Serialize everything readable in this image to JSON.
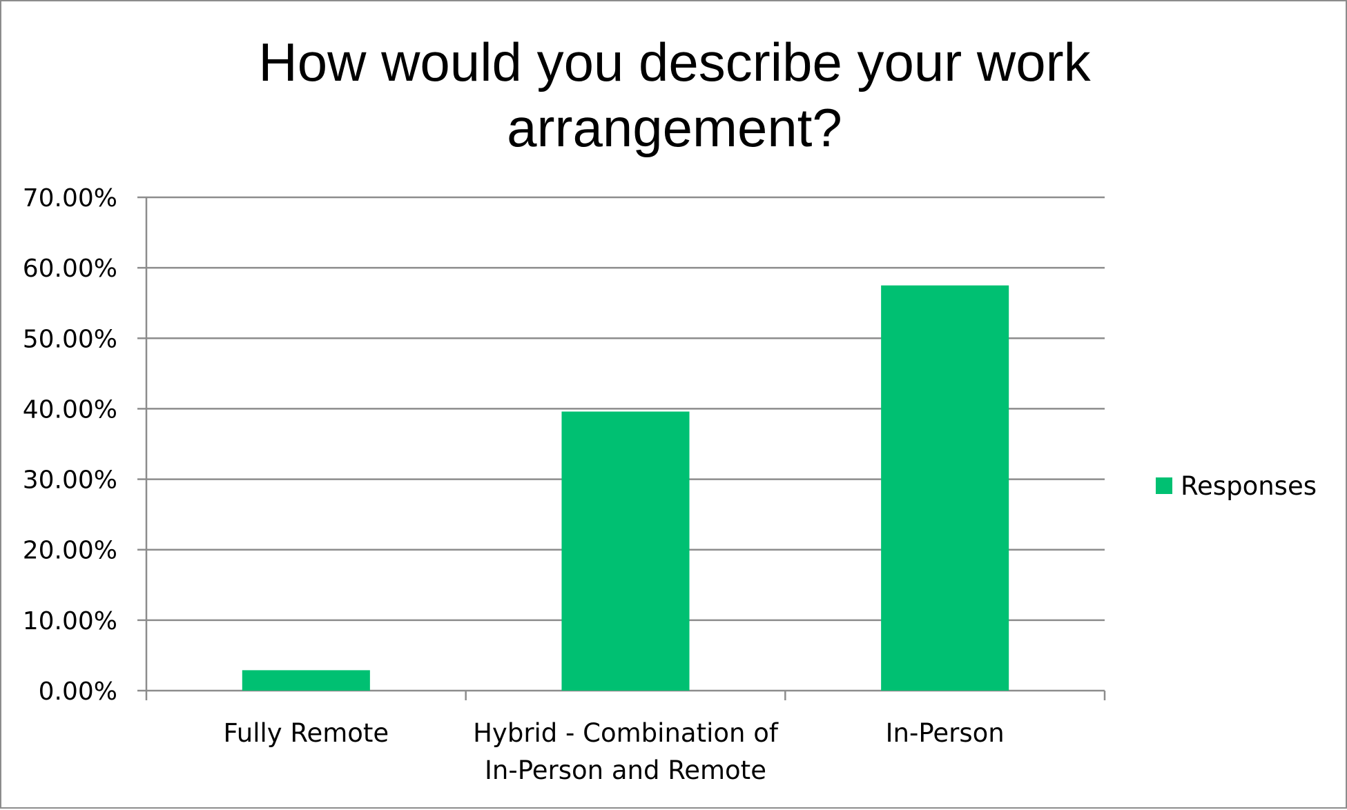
{
  "chart_data": {
    "type": "bar",
    "title_lines": [
      "How would you describe your work",
      "arrangement?"
    ],
    "categories": [
      [
        "Fully Remote"
      ],
      [
        "Hybrid - Combination of",
        "In-Person and Remote"
      ],
      [
        "In-Person"
      ]
    ],
    "series": [
      {
        "name": "Responses",
        "values": [
          2.9,
          39.6,
          57.5
        ],
        "color": "#00c072"
      }
    ],
    "y_ticks": [
      "0.00%",
      "10.00%",
      "20.00%",
      "30.00%",
      "40.00%",
      "50.00%",
      "60.00%",
      "70.00%"
    ],
    "ylim": [
      0,
      70
    ],
    "y_step": 10,
    "grid": true,
    "legend_position": "right",
    "colors": {
      "gridline": "#8c8c8c",
      "axis": "#8c8c8c",
      "frame": "#8c8c8c"
    }
  }
}
